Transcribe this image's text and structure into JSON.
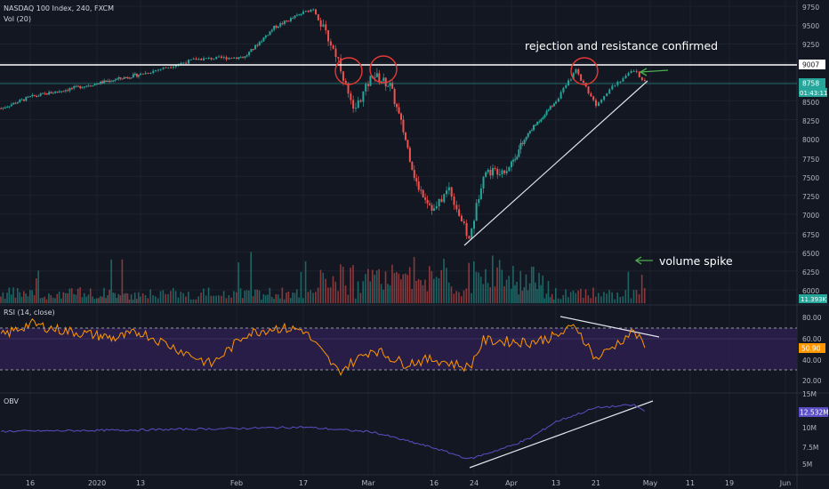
{
  "header": {
    "symbol_line": "NASDAQ 100 Index, 240, FXCM",
    "vol_label": "Vol (20)",
    "rsi_label": "RSI (14, close)",
    "obv_label": "OBV"
  },
  "annotations": {
    "rejection": "rejection and resistance confirmed",
    "volume_spike": "volume spike"
  },
  "colors": {
    "background": "#131722",
    "up": "#26a69a",
    "down": "#ef5350",
    "rsi_line": "#ff9800",
    "rsi_band": "#2a1e4a",
    "obv_line": "#5b4fc4",
    "resistance": "#ffffff",
    "current_price": "#26a69a",
    "circle": "#e53935",
    "arrow": "#4caf50"
  },
  "price_axis": {
    "ticks": [
      "9750",
      "9500",
      "9250",
      "9007",
      "8758",
      "01:43:11",
      "8500",
      "8250",
      "8000",
      "7750",
      "7500",
      "7250",
      "7000",
      "6750",
      "6500",
      "6250",
      "6000"
    ],
    "resistance_label": "9007",
    "last_price_label": "8758",
    "countdown_label": "01:43:11",
    "volume_label": "11.393K"
  },
  "rsi_axis": {
    "ticks": [
      "80.00",
      "60.00",
      "40.00",
      "20.00"
    ],
    "current_label": "50.90"
  },
  "obv_axis": {
    "ticks": [
      "15M",
      "10M",
      "7.5M",
      "5M"
    ],
    "current_label": "12.532M"
  },
  "x_axis": {
    "ticks": [
      "16",
      "2020",
      "13",
      "Feb",
      "17",
      "Mar",
      "16",
      "24",
      "Apr",
      "13",
      "21",
      "May",
      "11",
      "19",
      "Jun"
    ]
  },
  "chart_data": [
    {
      "type": "candlestick",
      "title": "NASDAQ 100 Index, 240, FXCM",
      "ylim": [
        5950,
        9850
      ],
      "resistance_level": 9007,
      "last_price": 8758,
      "price_path": [
        {
          "x": "Dec 9",
          "y": 8400
        },
        {
          "x": "Dec 16",
          "y": 8550
        },
        {
          "x": "Dec 31",
          "y": 8720
        },
        {
          "x": "Jan 13",
          "y": 8850
        },
        {
          "x": "Jan 24",
          "y": 9050
        },
        {
          "x": "Feb 3",
          "y": 9080
        },
        {
          "x": "Feb 10",
          "y": 9470
        },
        {
          "x": "Feb 19",
          "y": 9720
        },
        {
          "x": "Feb 24",
          "y": 9050
        },
        {
          "x": "Feb 27",
          "y": 8350
        },
        {
          "x": "Mar 2",
          "y": 8850
        },
        {
          "x": "Mar 6",
          "y": 8700
        },
        {
          "x": "Mar 9",
          "y": 8100
        },
        {
          "x": "Mar 12",
          "y": 7400
        },
        {
          "x": "Mar 16",
          "y": 7050
        },
        {
          "x": "Mar 19",
          "y": 7350
        },
        {
          "x": "Mar 23",
          "y": 6650
        },
        {
          "x": "Mar 26",
          "y": 7550
        },
        {
          "x": "Mar 31",
          "y": 7600
        },
        {
          "x": "Apr 6",
          "y": 8100
        },
        {
          "x": "Apr 13",
          "y": 8500
        },
        {
          "x": "Apr 17",
          "y": 8900
        },
        {
          "x": "Apr 21",
          "y": 8450
        },
        {
          "x": "Apr 24",
          "y": 8700
        },
        {
          "x": "Apr 28",
          "y": 8900
        },
        {
          "x": "Apr 30",
          "y": 8758
        }
      ]
    },
    {
      "type": "bar",
      "title": "Vol (20)",
      "last_value": "11.393K"
    },
    {
      "type": "line",
      "title": "RSI (14, close)",
      "ylim": [
        10,
        90
      ],
      "upper_band": 70,
      "lower_band": 30,
      "last_value": 50.9,
      "points": [
        {
          "x": "Dec 9",
          "y": 62
        },
        {
          "x": "Dec 16",
          "y": 74
        },
        {
          "x": "Dec 23",
          "y": 68
        },
        {
          "x": "Jan 6",
          "y": 60
        },
        {
          "x": "Jan 13",
          "y": 66
        },
        {
          "x": "Jan 27",
          "y": 35
        },
        {
          "x": "Feb 3",
          "y": 64
        },
        {
          "x": "Feb 10",
          "y": 70
        },
        {
          "x": "Feb 17",
          "y": 68
        },
        {
          "x": "Feb 24",
          "y": 28
        },
        {
          "x": "Mar 2",
          "y": 50
        },
        {
          "x": "Mar 9",
          "y": 36
        },
        {
          "x": "Mar 16",
          "y": 40
        },
        {
          "x": "Mar 23",
          "y": 32
        },
        {
          "x": "Mar 26",
          "y": 58
        },
        {
          "x": "Apr 6",
          "y": 56
        },
        {
          "x": "Apr 13",
          "y": 62
        },
        {
          "x": "Apr 17",
          "y": 72
        },
        {
          "x": "Apr 21",
          "y": 40
        },
        {
          "x": "Apr 28",
          "y": 67
        },
        {
          "x": "Apr 30",
          "y": 50.9
        }
      ]
    },
    {
      "type": "line",
      "title": "OBV",
      "ylim": [
        4,
        16
      ],
      "last_value": "12.532M",
      "points": [
        {
          "x": "Dec 9",
          "y": 9.6
        },
        {
          "x": "Jan 13",
          "y": 9.8
        },
        {
          "x": "Feb 17",
          "y": 10.2
        },
        {
          "x": "Mar 2",
          "y": 9.5
        },
        {
          "x": "Mar 16",
          "y": 7.2
        },
        {
          "x": "Mar 23",
          "y": 5.6
        },
        {
          "x": "Apr 6",
          "y": 8.6
        },
        {
          "x": "Apr 13",
          "y": 11.0
        },
        {
          "x": "Apr 21",
          "y": 13.0
        },
        {
          "x": "Apr 28",
          "y": 13.4
        },
        {
          "x": "Apr 30",
          "y": 12.5
        }
      ]
    }
  ]
}
